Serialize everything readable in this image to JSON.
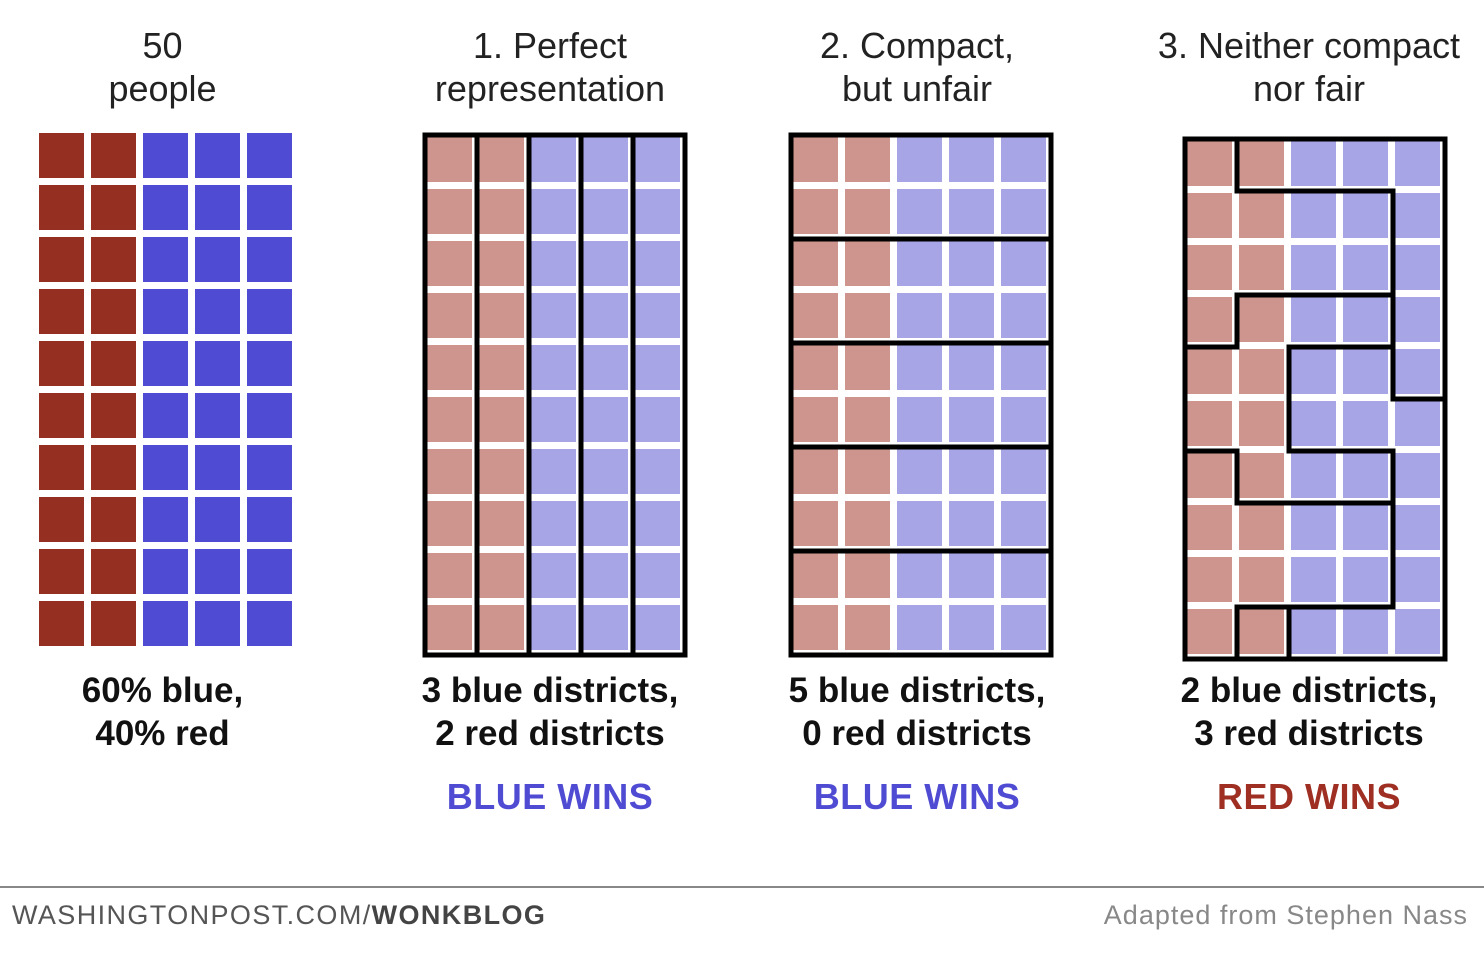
{
  "colors": {
    "red_full": "#952f22",
    "blue_full": "#4f4bd3",
    "red_light": "#cd958d",
    "blue_light": "#a8a5e7",
    "red_text": "#9e2f22",
    "blue_text": "#4f4bd3"
  },
  "population": {
    "columns": [
      "red",
      "red",
      "blue",
      "blue",
      "blue"
    ],
    "rows": 10
  },
  "panels": [
    {
      "title_line1": "50",
      "title_line2": "people",
      "caption_line1": "60% blue,",
      "caption_line2": "40% red",
      "verdict": "",
      "verdict_color": "",
      "districts": [],
      "counts": {
        "blue": 3,
        "red": 2
      }
    },
    {
      "title_line1": "1. Perfect",
      "title_line2": "representation",
      "caption_line1": "3 blue districts,",
      "caption_line2": "2 red districts",
      "verdict": "BLUE WINS",
      "verdict_color": "#4f4bd3",
      "districts": [
        [
          0,
          0,
          1,
          2,
          3,
          4
        ],
        [
          0,
          0,
          1,
          2,
          3,
          4
        ],
        [
          0,
          0,
          1,
          2,
          3,
          4
        ],
        [
          0,
          0,
          1,
          2,
          3,
          4
        ],
        [
          0,
          0,
          1,
          2,
          3,
          4
        ]
      ],
      "district_map": [
        [
          0,
          1,
          2,
          3,
          4
        ],
        [
          0,
          1,
          2,
          3,
          4
        ],
        [
          0,
          1,
          2,
          3,
          4
        ],
        [
          0,
          1,
          2,
          3,
          4
        ],
        [
          0,
          1,
          2,
          3,
          4
        ],
        [
          0,
          1,
          2,
          3,
          4
        ],
        [
          0,
          1,
          2,
          3,
          4
        ],
        [
          0,
          1,
          2,
          3,
          4
        ],
        [
          0,
          1,
          2,
          3,
          4
        ],
        [
          0,
          1,
          2,
          3,
          4
        ]
      ]
    },
    {
      "title_line1": "2. Compact,",
      "title_line2": "but unfair",
      "caption_line1": "5 blue districts,",
      "caption_line2": "0 red districts",
      "verdict": "BLUE WINS",
      "verdict_color": "#4f4bd3",
      "district_map": [
        [
          0,
          0,
          0,
          0,
          0
        ],
        [
          0,
          0,
          0,
          0,
          0
        ],
        [
          1,
          1,
          1,
          1,
          1
        ],
        [
          1,
          1,
          1,
          1,
          1
        ],
        [
          2,
          2,
          2,
          2,
          2
        ],
        [
          2,
          2,
          2,
          2,
          2
        ],
        [
          3,
          3,
          3,
          3,
          3
        ],
        [
          3,
          3,
          3,
          3,
          3
        ],
        [
          4,
          4,
          4,
          4,
          4
        ],
        [
          4,
          4,
          4,
          4,
          4
        ]
      ]
    },
    {
      "title_line1": "3. Neither compact",
      "title_line2": "nor fair",
      "caption_line1": "2 blue districts,",
      "caption_line2": "3 red districts",
      "verdict": "RED WINS",
      "verdict_color": "#9e2f22",
      "district_map": [
        [
          0,
          1,
          1,
          1,
          1
        ],
        [
          0,
          0,
          0,
          0,
          1
        ],
        [
          0,
          0,
          0,
          0,
          1
        ],
        [
          0,
          2,
          2,
          2,
          1
        ],
        [
          2,
          2,
          3,
          3,
          1
        ],
        [
          2,
          2,
          3,
          3,
          3
        ],
        [
          4,
          2,
          2,
          2,
          3
        ],
        [
          4,
          4,
          4,
          4,
          3
        ],
        [
          4,
          4,
          4,
          4,
          3
        ],
        [
          4,
          0,
          3,
          3,
          3
        ]
      ]
    }
  ],
  "footer": {
    "source_prefix": "WASHINGTONPOST.COM/",
    "source_bold": "WONKBLOG",
    "credit": "Adapted from Stephen Nass"
  }
}
